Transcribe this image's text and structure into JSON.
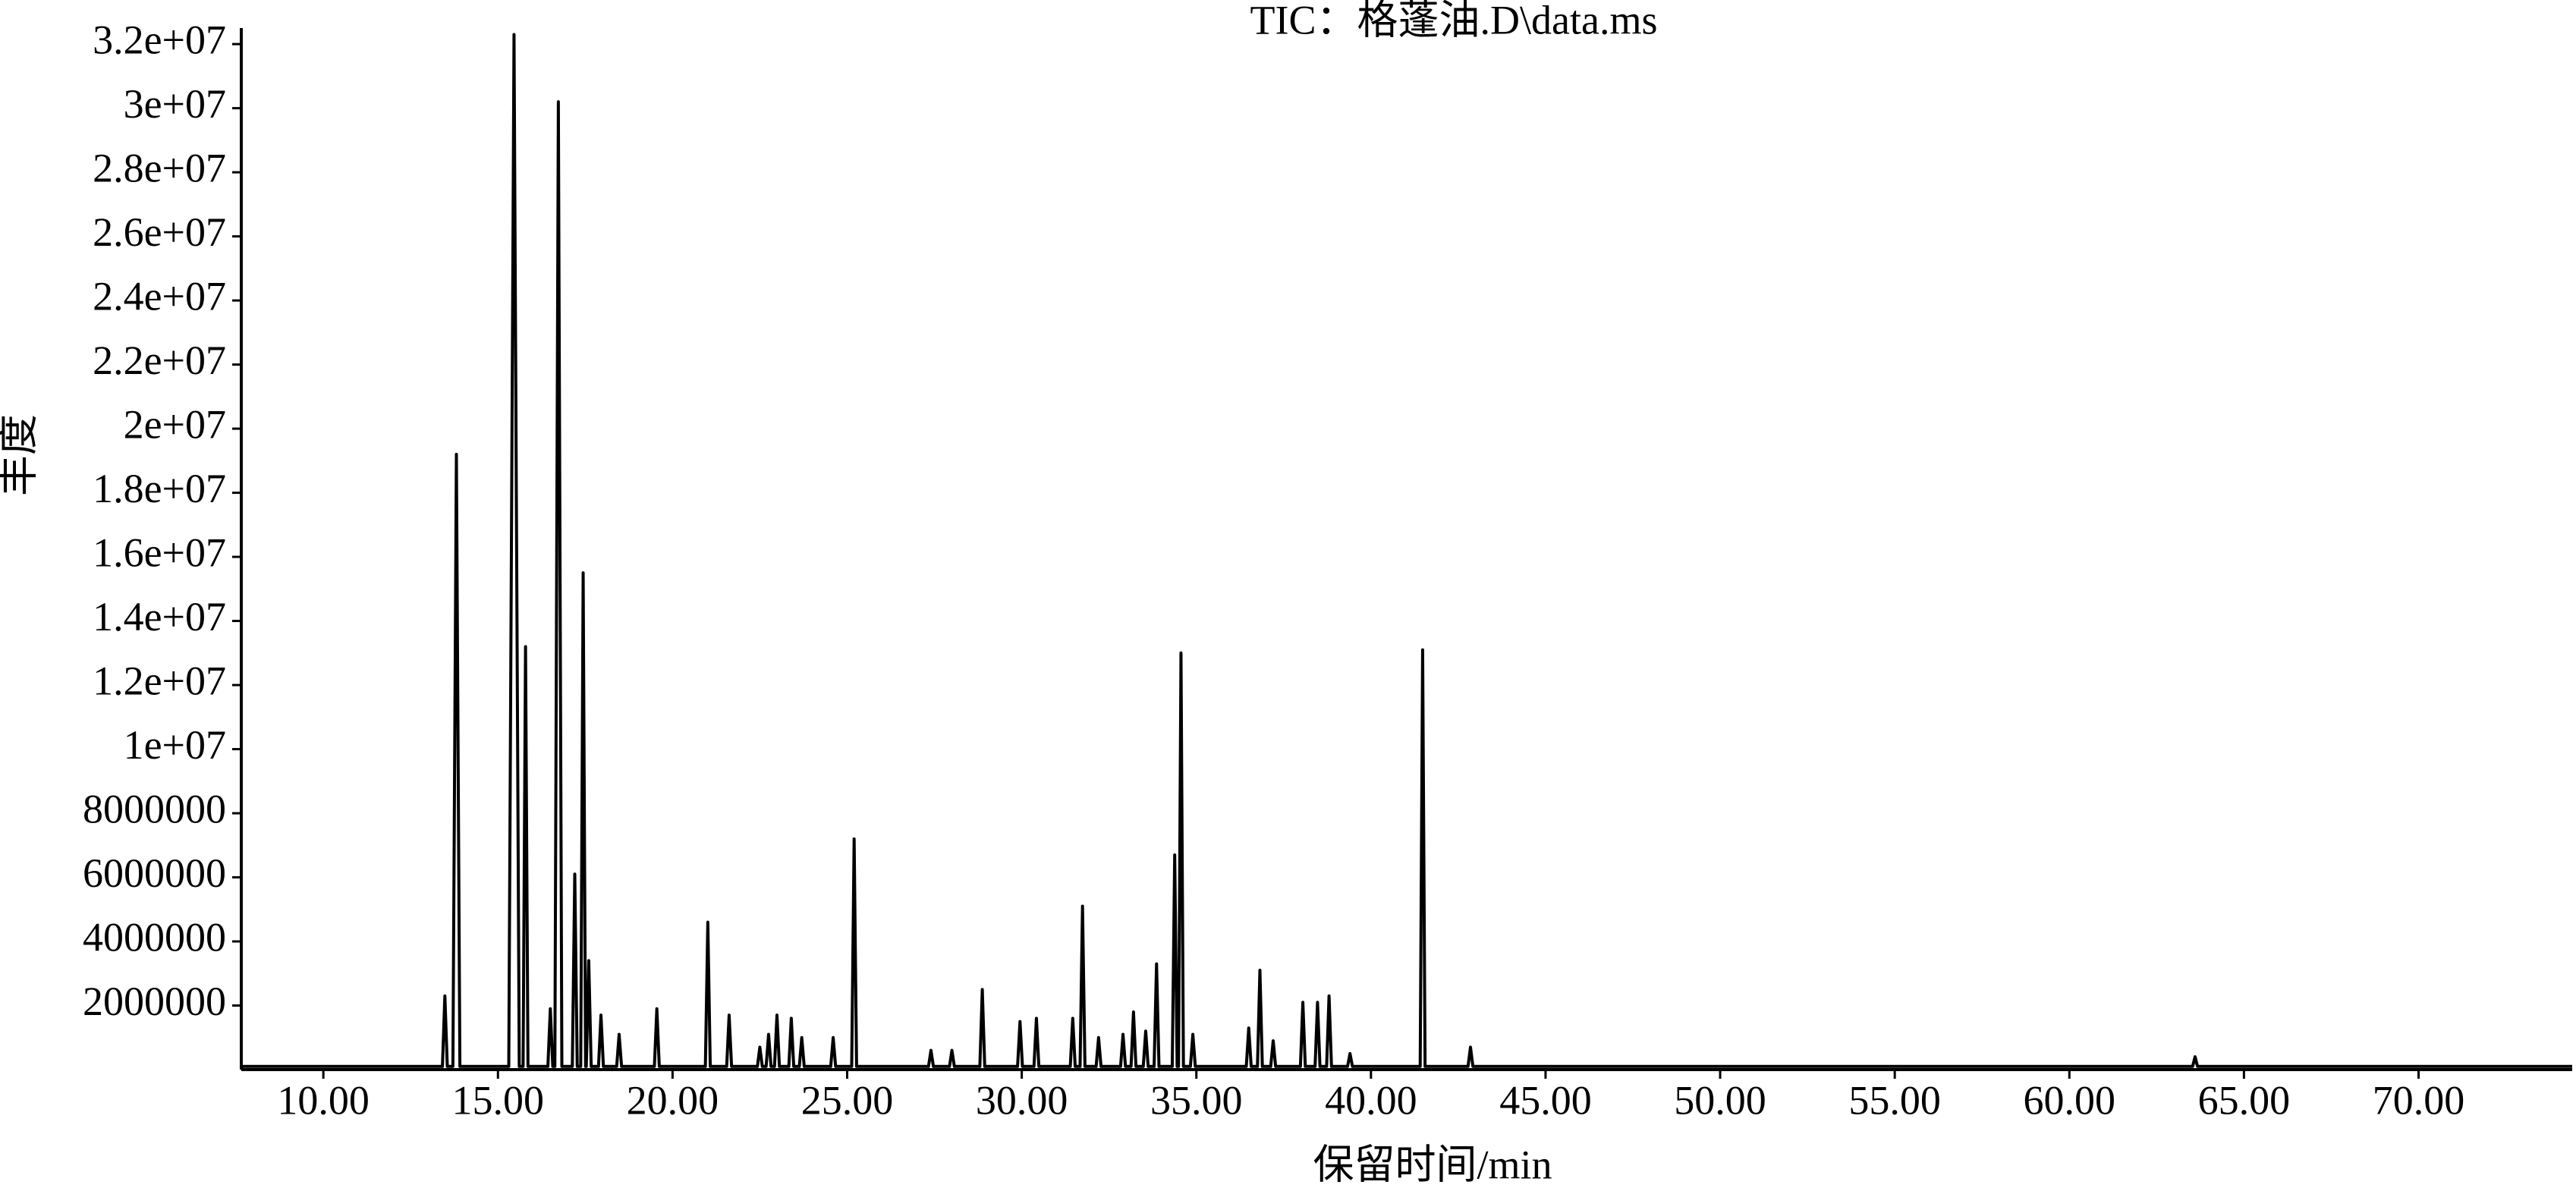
{
  "chart_data": {
    "type": "line",
    "title": "TIC：格蓬油.D\\data.ms",
    "x_label": "保留时间/min",
    "y_label": "丰度",
    "color": "#000000",
    "x": [
      7.65,
      13.41,
      13.48,
      13.55,
      13.71,
      13.81,
      13.91,
      15.31,
      15.46,
      15.61,
      15.72,
      15.79,
      15.86,
      16.43,
      16.5,
      16.57,
      16.63,
      16.73,
      16.83,
      17.13,
      17.2,
      17.27,
      17.37,
      17.44,
      17.51,
      17.53,
      17.6,
      17.67,
      17.88,
      17.95,
      18.02,
      18.4,
      18.47,
      18.54,
      19.48,
      19.55,
      19.62,
      20.94,
      21.01,
      21.08,
      21.55,
      21.62,
      21.69,
      22.43,
      22.5,
      22.57,
      22.68,
      22.75,
      22.82,
      22.92,
      22.99,
      23.06,
      23.33,
      23.4,
      23.47,
      23.63,
      23.7,
      23.77,
      24.53,
      24.6,
      24.67,
      25.13,
      25.2,
      25.27,
      27.33,
      27.4,
      27.47,
      27.93,
      28.0,
      28.07,
      28.8,
      28.87,
      28.94,
      29.88,
      29.95,
      30.02,
      30.35,
      30.42,
      30.49,
      31.39,
      31.46,
      31.53,
      31.67,
      31.74,
      31.81,
      32.13,
      32.2,
      32.27,
      32.83,
      32.9,
      32.97,
      33.13,
      33.2,
      33.27,
      33.48,
      33.55,
      33.62,
      33.79,
      33.86,
      33.93,
      34.31,
      34.38,
      34.45,
      34.49,
      34.56,
      34.63,
      34.83,
      34.9,
      34.97,
      36.43,
      36.5,
      36.57,
      36.75,
      36.82,
      36.89,
      37.13,
      37.2,
      37.27,
      37.98,
      38.05,
      38.12,
      38.4,
      38.47,
      38.54,
      38.73,
      38.8,
      38.87,
      39.33,
      39.4,
      39.47,
      41.41,
      41.48,
      41.55,
      42.78,
      42.85,
      42.92,
      63.53,
      63.6,
      63.67,
      74.4
    ],
    "values": [
      100000,
      100000,
      2300000,
      100000,
      100000,
      19200000,
      100000,
      100000,
      32300000,
      100000,
      100000,
      13200000,
      100000,
      100000,
      1900000,
      100000,
      100000,
      30200000,
      100000,
      100000,
      6100000,
      100000,
      100000,
      15500000,
      100000,
      100000,
      3400000,
      100000,
      100000,
      1700000,
      100000,
      100000,
      1100000,
      100000,
      100000,
      1900000,
      100000,
      100000,
      4600000,
      100000,
      100000,
      1700000,
      100000,
      100000,
      700000,
      100000,
      100000,
      1100000,
      100000,
      100000,
      1700000,
      100000,
      100000,
      1600000,
      100000,
      100000,
      1000000,
      100000,
      100000,
      1000000,
      100000,
      100000,
      7200000,
      100000,
      100000,
      600000,
      100000,
      100000,
      600000,
      100000,
      100000,
      2500000,
      100000,
      100000,
      1500000,
      100000,
      100000,
      1600000,
      100000,
      100000,
      1600000,
      100000,
      100000,
      5100000,
      100000,
      100000,
      1000000,
      100000,
      100000,
      1100000,
      100000,
      100000,
      1800000,
      100000,
      100000,
      1200000,
      100000,
      100000,
      3300000,
      100000,
      100000,
      6700000,
      100000,
      100000,
      13000000,
      100000,
      100000,
      1100000,
      100000,
      100000,
      1300000,
      100000,
      100000,
      3100000,
      100000,
      100000,
      900000,
      100000,
      100000,
      2100000,
      100000,
      100000,
      2100000,
      100000,
      100000,
      2300000,
      100000,
      100000,
      500000,
      100000,
      100000,
      13100000,
      100000,
      100000,
      700000,
      100000,
      100000,
      400000,
      100000,
      100000
    ],
    "xlim": [
      7.65,
      74.4
    ],
    "ylim": [
      0,
      32500000
    ],
    "xticks": [
      {
        "value": 10,
        "label": "10.00"
      },
      {
        "value": 15,
        "label": "15.00"
      },
      {
        "value": 20,
        "label": "20.00"
      },
      {
        "value": 25,
        "label": "25.00"
      },
      {
        "value": 30,
        "label": "30.00"
      },
      {
        "value": 35,
        "label": "35.00"
      },
      {
        "value": 40,
        "label": "40.00"
      },
      {
        "value": 45,
        "label": "45.00"
      },
      {
        "value": 50,
        "label": "50.00"
      },
      {
        "value": 55,
        "label": "55.00"
      },
      {
        "value": 60,
        "label": "60.00"
      },
      {
        "value": 65,
        "label": "65.00"
      },
      {
        "value": 70,
        "label": "70.00"
      }
    ],
    "yticks": [
      2000000,
      4000000,
      6000000,
      8000000,
      {
        "value": 10000000,
        "label": "1e+07"
      },
      {
        "value": 12000000,
        "label": "1.2e+07"
      },
      {
        "value": 14000000,
        "label": "1.4e+07"
      },
      {
        "value": 16000000,
        "label": "1.6e+07"
      },
      {
        "value": 18000000,
        "label": "1.8e+07"
      },
      {
        "value": 20000000,
        "label": "2e+07"
      },
      {
        "value": 22000000,
        "label": "2.2e+07"
      },
      {
        "value": 24000000,
        "label": "2.4e+07"
      },
      {
        "value": 26000000,
        "label": "2.6e+07"
      },
      {
        "value": 28000000,
        "label": "2.8e+07"
      },
      {
        "value": 30000000,
        "label": "3e+07"
      },
      {
        "value": 32000000,
        "label": "3.2e+07"
      }
    ],
    "grid": false
  }
}
